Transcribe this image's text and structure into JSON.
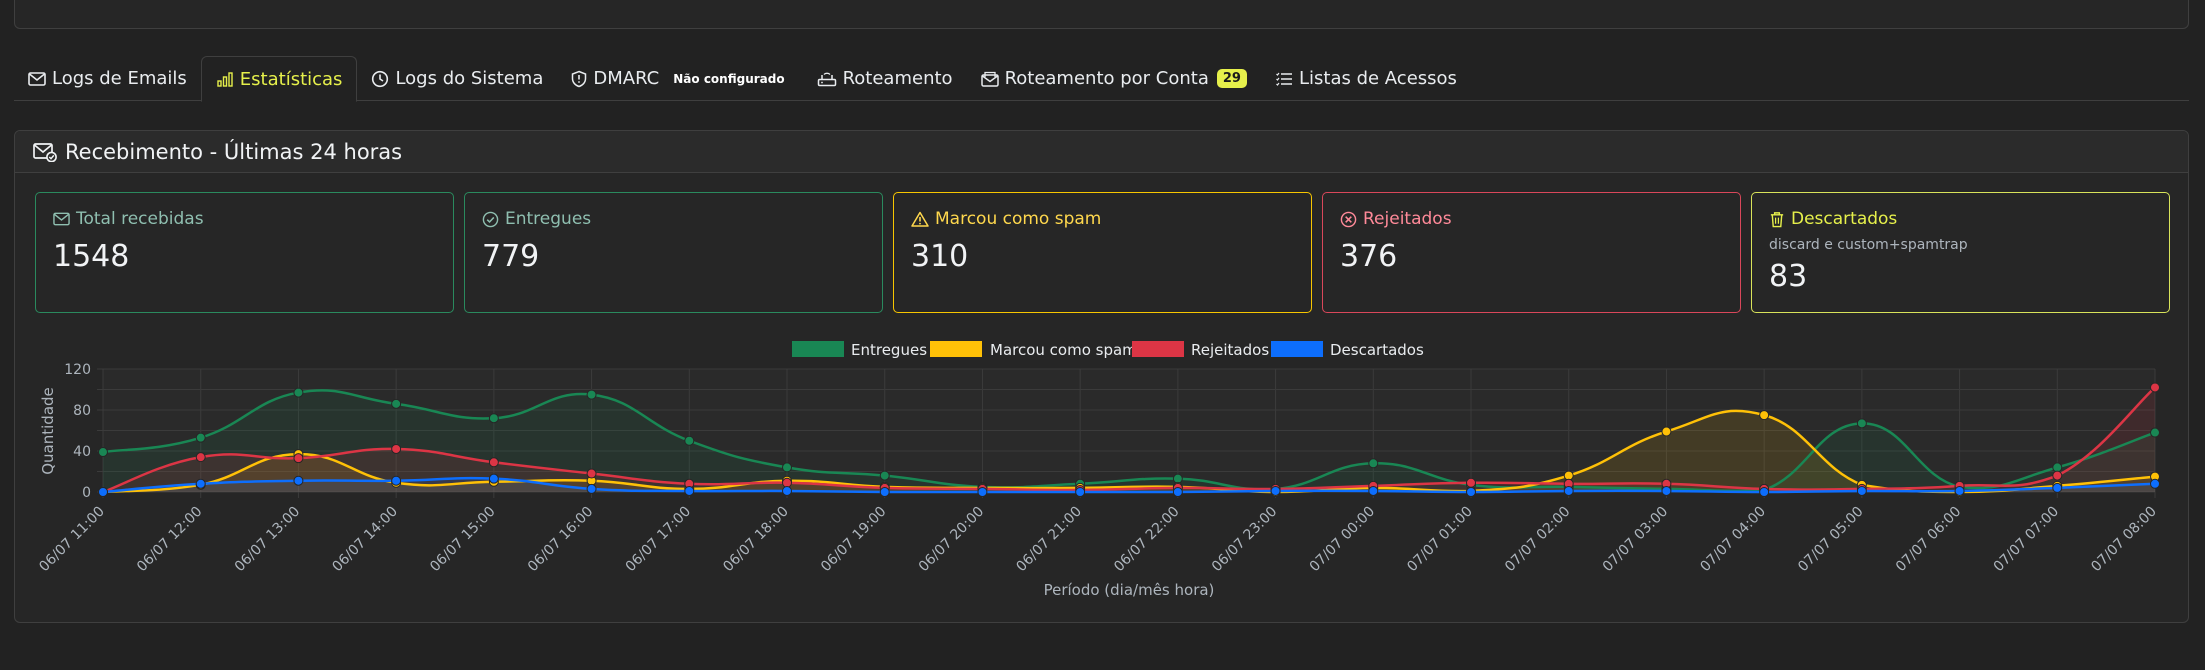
{
  "tabs": [
    {
      "label": "Logs de Emails",
      "icon": "envelope-icon",
      "active": false
    },
    {
      "label": "Estatísticas",
      "icon": "bar-chart-icon",
      "active": true
    },
    {
      "label": "Logs do Sistema",
      "icon": "clock-icon",
      "active": false
    },
    {
      "label": "DMARC",
      "icon": "shield-icon",
      "active": false,
      "pill": "Não configurado"
    },
    {
      "label": "Roteamento",
      "icon": "router-icon",
      "active": false
    },
    {
      "label": "Roteamento por Conta",
      "icon": "envelope-paper-icon",
      "active": false,
      "badge": "29"
    },
    {
      "label": "Listas de Acessos",
      "icon": "list-icon",
      "active": false
    }
  ],
  "panel": {
    "title": "Recebimento - Últimas 24 horas",
    "title_icon": "envelope-check-icon"
  },
  "stats": {
    "total": {
      "label": "Total recebidas",
      "value": "1548",
      "icon": "envelope-icon"
    },
    "delivered": {
      "label": "Entregues",
      "value": "779",
      "icon": "check-circle-icon"
    },
    "spam": {
      "label": "Marcou como spam",
      "value": "310",
      "icon": "warning-triangle-icon"
    },
    "rejected": {
      "label": "Rejeitados",
      "value": "376",
      "icon": "x-circle-icon"
    },
    "discarded": {
      "label": "Descartados",
      "sub": "discard e custom+spamtrap",
      "value": "83",
      "icon": "trash-icon"
    }
  },
  "colors": {
    "delivered": "#198754",
    "spam": "#ffc107",
    "rejected": "#dc3545",
    "discarded": "#0d6efd",
    "tab_active": "#e6f04b"
  },
  "chart_data": {
    "type": "line",
    "xlabel": "Período (dia/mês hora)",
    "ylabel": "Quantidade",
    "ylim": [
      0,
      120
    ],
    "yticks": [
      0,
      40,
      80,
      120
    ],
    "grid": true,
    "legend_position": "top",
    "categories": [
      "06/07 11:00",
      "06/07 12:00",
      "06/07 13:00",
      "06/07 14:00",
      "06/07 15:00",
      "06/07 16:00",
      "06/07 17:00",
      "06/07 18:00",
      "06/07 19:00",
      "06/07 20:00",
      "06/07 21:00",
      "06/07 22:00",
      "06/07 23:00",
      "07/07 00:00",
      "07/07 01:00",
      "07/07 02:00",
      "07/07 03:00",
      "07/07 04:00",
      "07/07 05:00",
      "07/07 06:00",
      "07/07 07:00",
      "07/07 08:00"
    ],
    "series": [
      {
        "name": "Entregues",
        "color": "#198754",
        "values": [
          39,
          53,
          97,
          86,
          72,
          95,
          50,
          24,
          16,
          5,
          8,
          13,
          3,
          28,
          7,
          5,
          3,
          2,
          67,
          5,
          24,
          58
        ]
      },
      {
        "name": "Marcou como spam",
        "color": "#ffc107",
        "values": [
          0,
          7,
          37,
          9,
          10,
          11,
          3,
          11,
          5,
          4,
          4,
          5,
          0,
          4,
          1,
          16,
          59,
          75,
          7,
          0,
          6,
          15
        ]
      },
      {
        "name": "Rejeitados",
        "color": "#dc3545",
        "values": [
          0,
          34,
          33,
          42,
          29,
          18,
          8,
          9,
          4,
          3,
          2,
          4,
          3,
          6,
          9,
          8,
          8,
          3,
          3,
          6,
          16,
          102
        ]
      },
      {
        "name": "Descartados",
        "color": "#0d6efd",
        "values": [
          0,
          8,
          11,
          11,
          13,
          3,
          1,
          1,
          0,
          0,
          0,
          0,
          1,
          1,
          0,
          1,
          1,
          0,
          1,
          1,
          4,
          8
        ]
      }
    ]
  }
}
